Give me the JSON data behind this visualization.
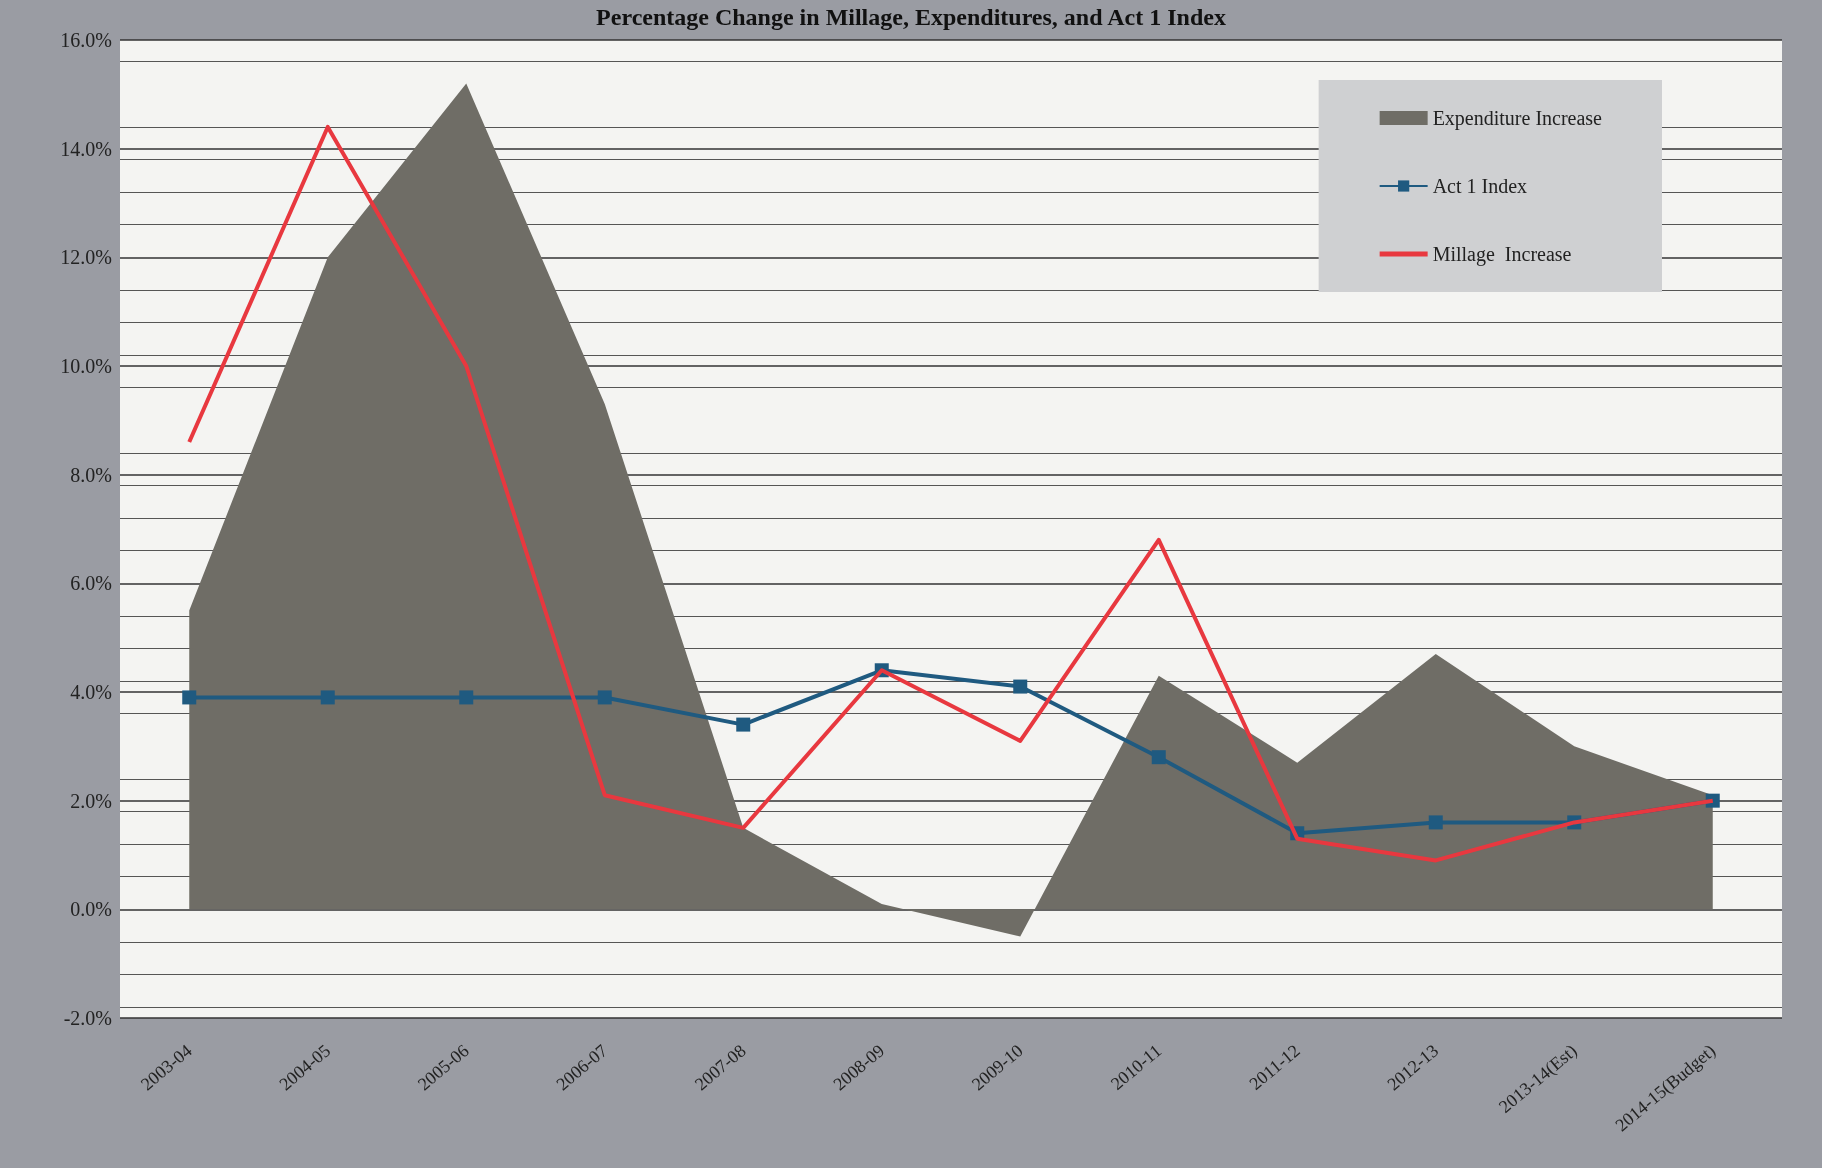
{
  "chart_data": {
    "type": "line",
    "title": "Percentage Change in Millage, Expenditures, and Act 1 Index",
    "categories": [
      "2003-04",
      "2004-05",
      "2005-06",
      "2006-07",
      "2007-08",
      "2008-09",
      "2009-10",
      "2010-11",
      "2011-12",
      "2012-13",
      "2013-14(Est)",
      "2014-15(Budget)"
    ],
    "series": [
      {
        "name": "Expenditure Increase",
        "type": "area",
        "color": "#6f6d66",
        "marker": "none",
        "values": [
          5.5,
          12.0,
          15.2,
          9.3,
          1.5,
          0.1,
          -0.5,
          4.3,
          2.7,
          4.7,
          3.0,
          2.1
        ]
      },
      {
        "name": "Act 1 Index",
        "color": "#1f5a80",
        "marker": "square",
        "values": [
          3.9,
          3.9,
          3.9,
          3.9,
          3.4,
          4.4,
          4.1,
          2.8,
          1.4,
          1.6,
          1.6,
          2.0
        ]
      },
      {
        "name": "Millage  Increase",
        "color": "#e8383f",
        "marker": "none",
        "values": [
          8.6,
          14.4,
          10.0,
          2.1,
          1.5,
          4.4,
          3.1,
          6.8,
          1.3,
          0.9,
          1.6,
          2.0
        ]
      }
    ],
    "ylim": [
      -2,
      16
    ],
    "yticks": [
      {
        "value": -2,
        "label": "-2.0%"
      },
      {
        "value": 0,
        "label": "0.0%"
      },
      {
        "value": 2,
        "label": "2.0%"
      },
      {
        "value": 4,
        "label": "4.0%"
      },
      {
        "value": 6,
        "label": "6.0%"
      },
      {
        "value": 8,
        "label": "8.0%"
      },
      {
        "value": 10,
        "label": "10.0%"
      },
      {
        "value": 12,
        "label": "12.0%"
      },
      {
        "value": 14,
        "label": "14.0%"
      },
      {
        "value": 16,
        "label": "16.0%"
      }
    ],
    "grid": "y",
    "legend": "top right",
    "line_style": "solid"
  }
}
